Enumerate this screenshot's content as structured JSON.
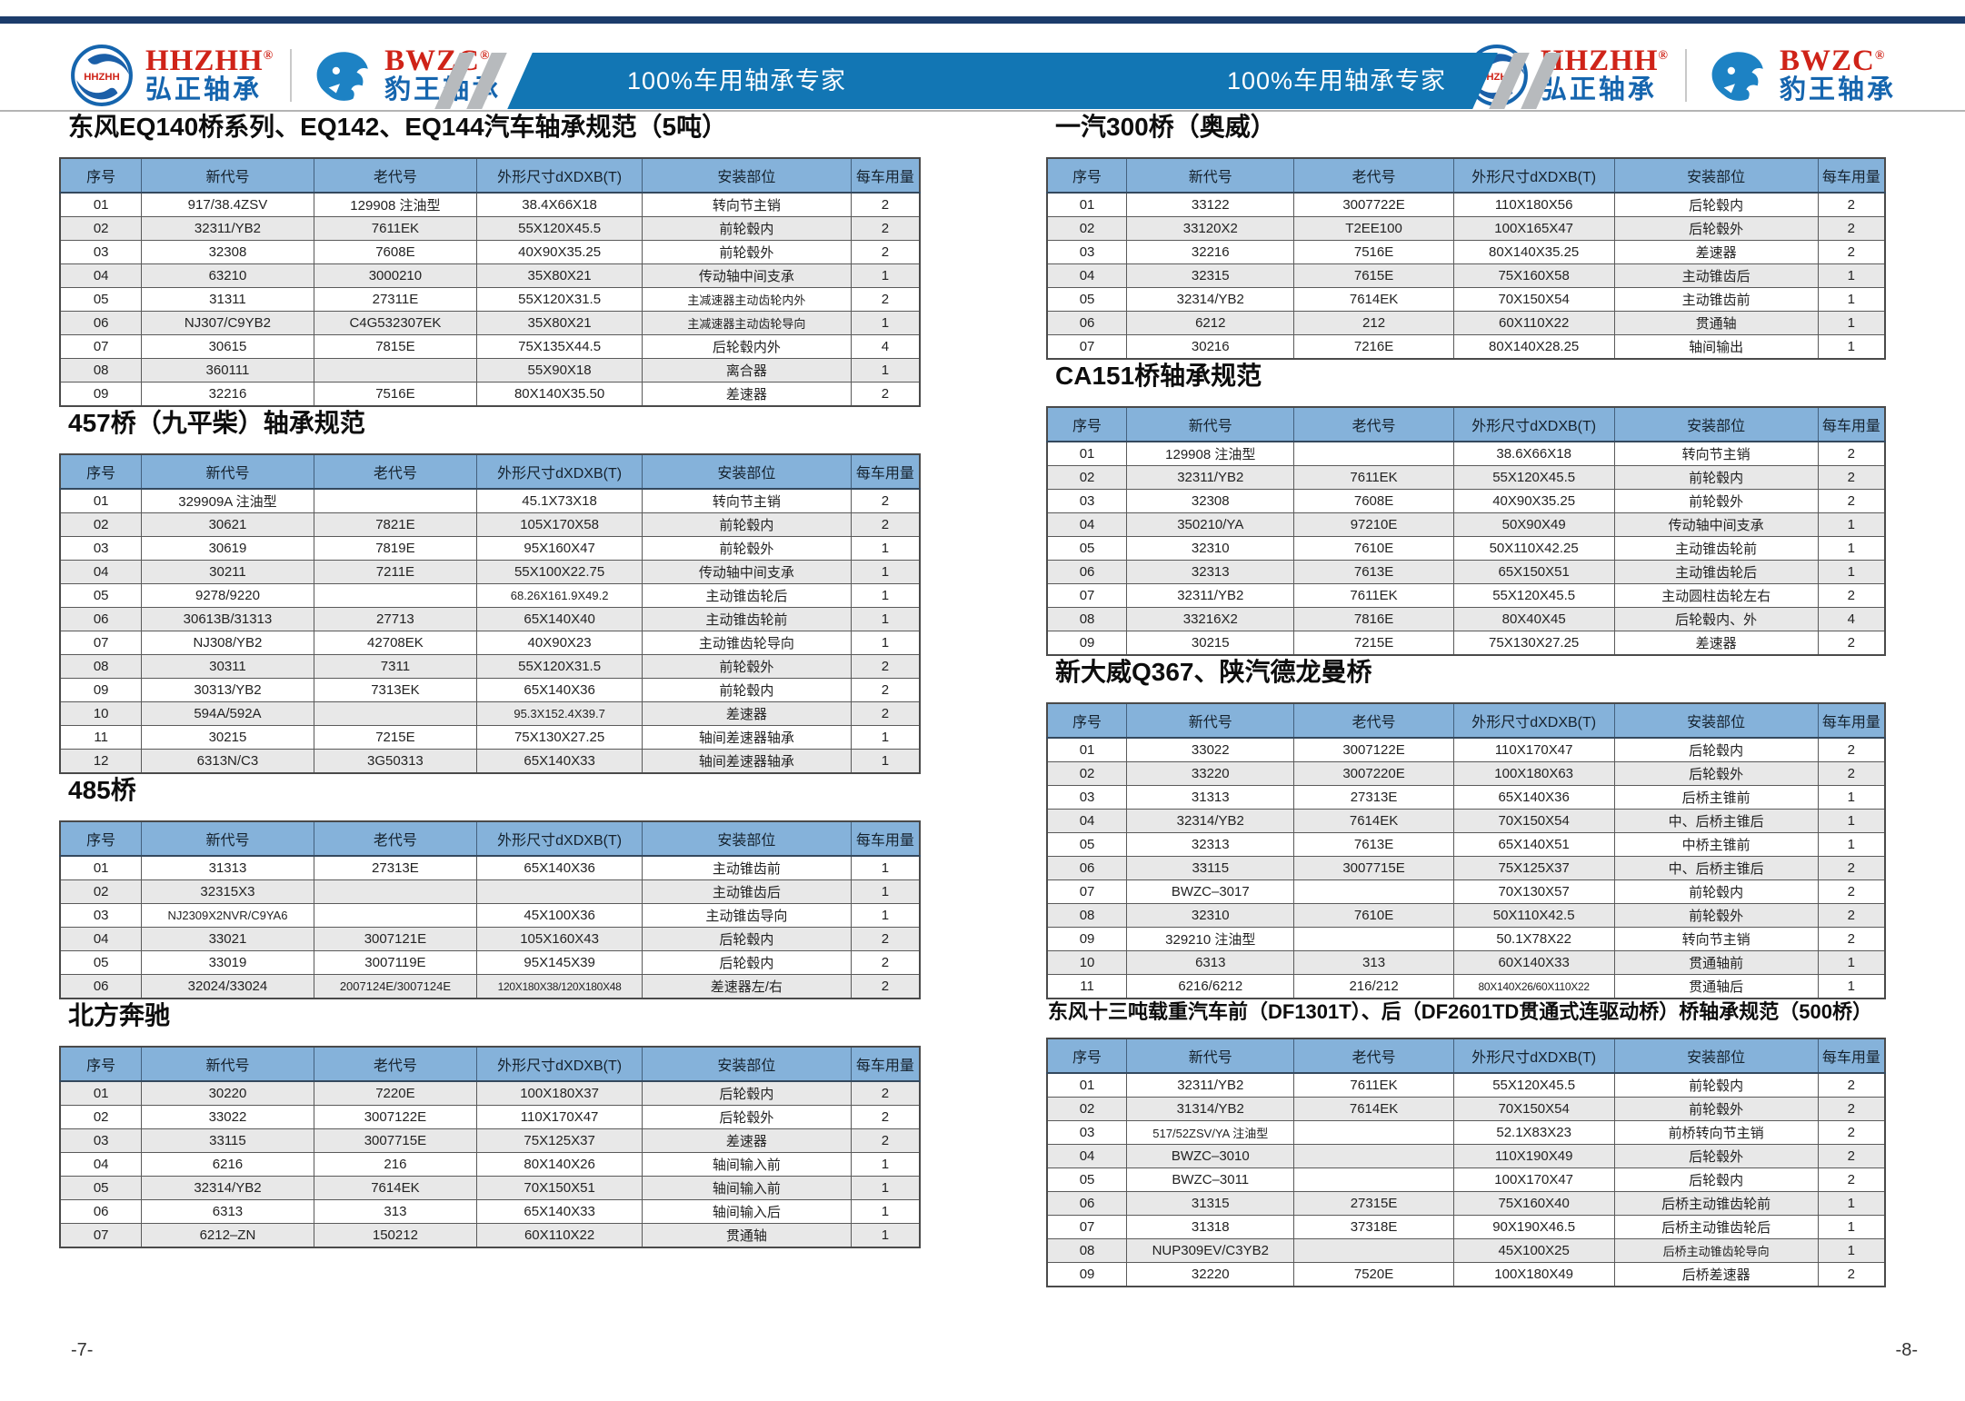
{
  "header": {
    "banner_texts": [
      "100%车用轴承专家",
      "100%车用轴承专家"
    ],
    "brands": [
      {
        "en": "HHZHH",
        "reg": "®",
        "cn": "弘正轴承"
      },
      {
        "en": "BWZC",
        "reg": "®",
        "cn": "豹王轴承"
      }
    ]
  },
  "colors": {
    "banner_blue": "#1276b4",
    "table_header_blue": "#85b2da",
    "row_alt_gray": "#e8e8e8",
    "brand_red": "#cf2318",
    "brand_blue": "#1565ae",
    "navy_bar": "#1c3c6b",
    "stripe_gray": "#b7babd"
  },
  "columns": [
    "序号",
    "新代号",
    "老代号",
    "外形尺寸dXDXB(T)",
    "安装部位",
    "每车用量"
  ],
  "tables": [
    {
      "title": "东风EQ140桥系列、EQ142、EQ144汽车轴承规范（5吨）",
      "rows": [
        [
          "01",
          "917/38.4ZSV",
          "129908 注油型",
          "38.4X66X18",
          "转向节主销",
          "2"
        ],
        [
          "02",
          "32311/YB2",
          "7611EK",
          "55X120X45.5",
          "前轮毂内",
          "2"
        ],
        [
          "03",
          "32308",
          "7608E",
          "40X90X35.25",
          "前轮毂外",
          "2"
        ],
        [
          "04",
          "63210",
          "3000210",
          "35X80X21",
          "传动轴中间支承",
          "1"
        ],
        [
          "05",
          "31311",
          "27311E",
          "55X120X31.5",
          "主减速器主动齿轮内外",
          "2"
        ],
        [
          "06",
          "NJ307/C9YB2",
          "C4G532307EK",
          "35X80X21",
          "主减速器主动齿轮导向",
          "1"
        ],
        [
          "07",
          "30615",
          "7815E",
          "75X135X44.5",
          "后轮毂内外",
          "4"
        ],
        [
          "08",
          "360111",
          "",
          "55X90X18",
          "离合器",
          "1"
        ],
        [
          "09",
          "32216",
          "7516E",
          "80X140X35.50",
          "差速器",
          "2"
        ]
      ]
    },
    {
      "title": "457桥（九平柴）轴承规范",
      "rows": [
        [
          "01",
          "329909A 注油型",
          "",
          "45.1X73X18",
          "转向节主销",
          "2"
        ],
        [
          "02",
          "30621",
          "7821E",
          "105X170X58",
          "前轮毂内",
          "2"
        ],
        [
          "03",
          "30619",
          "7819E",
          "95X160X47",
          "前轮毂外",
          "1"
        ],
        [
          "04",
          "30211",
          "7211E",
          "55X100X22.75",
          "传动轴中间支承",
          "1"
        ],
        [
          "05",
          "9278/9220",
          "",
          "68.26X161.9X49.2",
          "主动锥齿轮后",
          "1"
        ],
        [
          "06",
          "30613B/31313",
          "27713",
          "65X140X40",
          "主动锥齿轮前",
          "1"
        ],
        [
          "07",
          "NJ308/YB2",
          "42708EK",
          "40X90X23",
          "主动锥齿轮导向",
          "1"
        ],
        [
          "08",
          "30311",
          "7311",
          "55X120X31.5",
          "前轮毂外",
          "2"
        ],
        [
          "09",
          "30313/YB2",
          "7313EK",
          "65X140X36",
          "前轮毂内",
          "2"
        ],
        [
          "10",
          "594A/592A",
          "",
          "95.3X152.4X39.7",
          "差速器",
          "2"
        ],
        [
          "11",
          "30215",
          "7215E",
          "75X130X27.25",
          "轴间差速器轴承",
          "1"
        ],
        [
          "12",
          "6313N/C3",
          "3G50313",
          "65X140X33",
          "轴间差速器轴承",
          "1"
        ]
      ]
    },
    {
      "title": "485桥",
      "rows": [
        [
          "01",
          "31313",
          "27313E",
          "65X140X36",
          "主动锥齿前",
          "1"
        ],
        [
          "02",
          "32315X3",
          "",
          "",
          "主动锥齿后",
          "1"
        ],
        [
          "03",
          "NJ2309X2NVR/C9YA6",
          "",
          "45X100X36",
          "主动锥齿导向",
          "1"
        ],
        [
          "04",
          "33021",
          "3007121E",
          "105X160X43",
          "后轮毂内",
          "2"
        ],
        [
          "05",
          "33019",
          "3007119E",
          "95X145X39",
          "后轮毂内",
          "2"
        ],
        [
          "06",
          "32024/33024",
          "2007124E/3007124E",
          "120X180X38/120X180X48",
          "差速器左/右",
          "2"
        ]
      ]
    },
    {
      "title": "北方奔驰",
      "rows": [
        [
          "01",
          "30220",
          "7220E",
          "100X180X37",
          "后轮毂内",
          "2"
        ],
        [
          "02",
          "33022",
          "3007122E",
          "110X170X47",
          "后轮毂外",
          "2"
        ],
        [
          "03",
          "33115",
          "3007715E",
          "75X125X37",
          "差速器",
          "2"
        ],
        [
          "04",
          "6216",
          "216",
          "80X140X26",
          "轴间输入前",
          "1"
        ],
        [
          "05",
          "32314/YB2",
          "7614EK",
          "70X150X51",
          "轴间输入前",
          "1"
        ],
        [
          "06",
          "6313",
          "313",
          "65X140X33",
          "轴间输入后",
          "1"
        ],
        [
          "07",
          "6212–ZN",
          "150212",
          "60X110X22",
          "贯通轴",
          "1"
        ]
      ]
    },
    {
      "title": "一汽300桥（奥威）",
      "rows": [
        [
          "01",
          "33122",
          "3007722E",
          "110X180X56",
          "后轮毂内",
          "2"
        ],
        [
          "02",
          "33120X2",
          "T2EE100",
          "100X165X47",
          "后轮毂外",
          "2"
        ],
        [
          "03",
          "32216",
          "7516E",
          "80X140X35.25",
          "差速器",
          "2"
        ],
        [
          "04",
          "32315",
          "7615E",
          "75X160X58",
          "主动锥齿后",
          "1"
        ],
        [
          "05",
          "32314/YB2",
          "7614EK",
          "70X150X54",
          "主动锥齿前",
          "1"
        ],
        [
          "06",
          "6212",
          "212",
          "60X110X22",
          "贯通轴",
          "1"
        ],
        [
          "07",
          "30216",
          "7216E",
          "80X140X28.25",
          "轴间输出",
          "1"
        ]
      ]
    },
    {
      "title": "CA151桥轴承规范",
      "rows": [
        [
          "01",
          "129908 注油型",
          "",
          "38.6X66X18",
          "转向节主销",
          "2"
        ],
        [
          "02",
          "32311/YB2",
          "7611EK",
          "55X120X45.5",
          "前轮毂内",
          "2"
        ],
        [
          "03",
          "32308",
          "7608E",
          "40X90X35.25",
          "前轮毂外",
          "2"
        ],
        [
          "04",
          "350210/YA",
          "97210E",
          "50X90X49",
          "传动轴中间支承",
          "1"
        ],
        [
          "05",
          "32310",
          "7610E",
          "50X110X42.25",
          "主动锥齿轮前",
          "1"
        ],
        [
          "06",
          "32313",
          "7613E",
          "65X150X51",
          "主动锥齿轮后",
          "1"
        ],
        [
          "07",
          "32311/YB2",
          "7611EK",
          "55X120X45.5",
          "主动圆柱齿轮左右",
          "2"
        ],
        [
          "08",
          "33216X2",
          "7816E",
          "80X40X45",
          "后轮毂内、外",
          "4"
        ],
        [
          "09",
          "30215",
          "7215E",
          "75X130X27.25",
          "差速器",
          "2"
        ]
      ]
    },
    {
      "title": "新大威Q367、陕汽德龙曼桥",
      "rows": [
        [
          "01",
          "33022",
          "3007122E",
          "110X170X47",
          "后轮毂内",
          "2"
        ],
        [
          "02",
          "33220",
          "3007220E",
          "100X180X63",
          "后轮毂外",
          "2"
        ],
        [
          "03",
          "31313",
          "27313E",
          "65X140X36",
          "后桥主锥前",
          "1"
        ],
        [
          "04",
          "32314/YB2",
          "7614EK",
          "70X150X54",
          "中、后桥主锥后",
          "1"
        ],
        [
          "05",
          "32313",
          "7613E",
          "65X140X51",
          "中桥主锥前",
          "1"
        ],
        [
          "06",
          "33115",
          "3007715E",
          "75X125X37",
          "中、后桥主锥后",
          "2"
        ],
        [
          "07",
          "BWZC–3017",
          "",
          "70X130X57",
          "前轮毂内",
          "2"
        ],
        [
          "08",
          "32310",
          "7610E",
          "50X110X42.5",
          "前轮毂外",
          "2"
        ],
        [
          "09",
          "329210 注油型",
          "",
          "50.1X78X22",
          "转向节主销",
          "2"
        ],
        [
          "10",
          "6313",
          "313",
          "60X140X33",
          "贯通轴前",
          "1"
        ],
        [
          "11",
          "6216/6212",
          "216/212",
          "80X140X26/60X110X22",
          "贯通轴后",
          "1"
        ]
      ]
    },
    {
      "title": "东风十三吨载重汽车前（DF1301T）、后（DF2601TD贯通式连驱动桥）桥轴承规范（500桥）",
      "rows": [
        [
          "01",
          "32311/YB2",
          "7611EK",
          "55X120X45.5",
          "前轮毂内",
          "2"
        ],
        [
          "02",
          "31314/YB2",
          "7614EK",
          "70X150X54",
          "前轮毂外",
          "2"
        ],
        [
          "03",
          "517/52ZSV/YA 注油型",
          "",
          "52.1X83X23",
          "前桥转向节主销",
          "2"
        ],
        [
          "04",
          "BWZC–3010",
          "",
          "110X190X49",
          "后轮毂外",
          "2"
        ],
        [
          "05",
          "BWZC–3011",
          "",
          "100X170X47",
          "后轮毂内",
          "2"
        ],
        [
          "06",
          "31315",
          "27315E",
          "75X160X40",
          "后桥主动锥齿轮前",
          "1"
        ],
        [
          "07",
          "31318",
          "37318E",
          "90X190X46.5",
          "后桥主动锥齿轮后",
          "1"
        ],
        [
          "08",
          "NUP309EV/C3YB2",
          "",
          "45X100X25",
          "后桥主动锥齿轮导向",
          "1"
        ],
        [
          "09",
          "32220",
          "7520E",
          "100X180X49",
          "后桥差速器",
          "2"
        ]
      ]
    }
  ],
  "footer": {
    "page_left": "-7-",
    "page_right": "-8-"
  }
}
